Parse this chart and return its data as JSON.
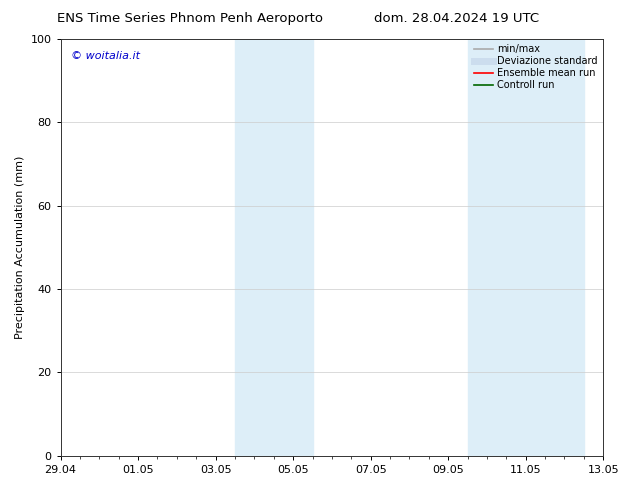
{
  "title_left": "ENS Time Series Phnom Penh Aeroporto",
  "title_right": "dom. 28.04.2024 19 UTC",
  "ylabel": "Precipitation Accumulation (mm)",
  "xlabel": "",
  "watermark": "© woitalia.it",
  "watermark_color": "#0000cc",
  "ylim": [
    0,
    100
  ],
  "yticks": [
    0,
    20,
    40,
    60,
    80,
    100
  ],
  "xtick_labels": [
    "29.04",
    "01.05",
    "03.05",
    "05.05",
    "07.05",
    "09.05",
    "11.05",
    "13.05"
  ],
  "xtick_positions": [
    0,
    2,
    4,
    6,
    8,
    10,
    12,
    14
  ],
  "x_start": 0,
  "x_end": 14,
  "shaded_bands": [
    {
      "x_start": 4.5,
      "x_end": 6.5
    },
    {
      "x_start": 10.5,
      "x_end": 13.5
    }
  ],
  "shaded_color": "#ddeef8",
  "background_color": "#ffffff",
  "grid_color": "#cccccc",
  "legend_items": [
    {
      "label": "min/max",
      "color": "#aaaaaa",
      "linewidth": 1.2,
      "linestyle": "-"
    },
    {
      "label": "Deviazione standard",
      "color": "#ccddee",
      "linewidth": 5,
      "linestyle": "-"
    },
    {
      "label": "Ensemble mean run",
      "color": "#ff0000",
      "linewidth": 1.2,
      "linestyle": "-"
    },
    {
      "label": "Controll run",
      "color": "#006600",
      "linewidth": 1.2,
      "linestyle": "-"
    }
  ],
  "title_fontsize": 9.5,
  "label_fontsize": 8,
  "tick_fontsize": 8,
  "watermark_fontsize": 8
}
